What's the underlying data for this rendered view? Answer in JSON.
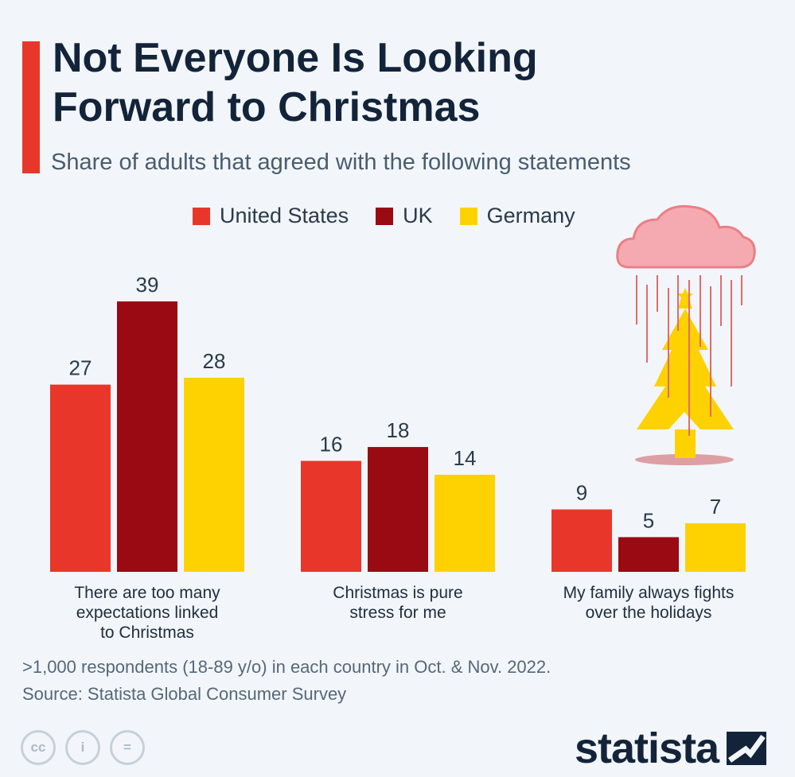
{
  "header": {
    "title_line1": "Not Everyone Is Looking",
    "title_line2": "Forward to Christmas",
    "subtitle": "Share of adults that agreed with the following statements"
  },
  "colors": {
    "us": "#e8372a",
    "uk": "#9a0a12",
    "germany": "#fdd200",
    "accent": "#e8372a",
    "title": "#13243a"
  },
  "chart_data": {
    "type": "bar",
    "title": "Not Everyone Is Looking Forward to Christmas",
    "subtitle": "Share of adults that agreed with the following statements",
    "categories": [
      [
        "There are too many",
        "expectations linked",
        "to Christmas"
      ],
      [
        "Christmas is pure",
        "stress for me"
      ],
      [
        "My family always fights",
        "over the holidays"
      ]
    ],
    "series": [
      {
        "name": "United States",
        "values": [
          27,
          16,
          9
        ]
      },
      {
        "name": "UK",
        "values": [
          39,
          18,
          5
        ]
      },
      {
        "name": "Germany",
        "values": [
          28,
          14,
          7
        ]
      }
    ],
    "ylim": [
      0,
      39
    ],
    "grid": false,
    "legend": "top-center",
    "data_labels": true
  },
  "footer": {
    "note": ">1,000 respondents (18-89 y/o) in each country in Oct. & Nov. 2022.",
    "source": "Source: Statista Global Consumer Survey",
    "brand": "statista",
    "cc_icons": [
      "cc",
      "i",
      "="
    ]
  },
  "illustration": {
    "icon": "rain-cloud-christmas-tree-icon"
  }
}
